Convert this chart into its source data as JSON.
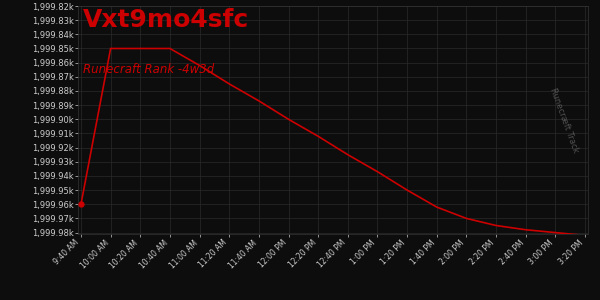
{
  "title": "Vxt9mo4sfc",
  "subtitle": "Runecraft Rank -4w3d",
  "background_color": "#0d0d0d",
  "grid_color": "#2a2a2a",
  "line_color": "#cc0000",
  "text_color": "#cccccc",
  "title_color": "#cc0000",
  "subtitle_color": "#cc0000",
  "x_times": [
    "9:40 AM",
    "10:00 AM",
    "10:20 AM",
    "10:40 AM",
    "11:00 AM",
    "11:20 AM",
    "11:40 AM",
    "12:00 PM",
    "12:20 PM",
    "12:40 PM",
    "1:00 PM",
    "1:20 PM",
    "1:40 PM",
    "2:00 PM",
    "2:20 PM",
    "2:40 PM",
    "3:00 PM",
    "3:20 PM"
  ],
  "x_numeric": [
    0,
    20,
    40,
    60,
    80,
    100,
    120,
    140,
    160,
    180,
    200,
    220,
    240,
    260,
    280,
    300,
    320,
    340
  ],
  "y_data_raw": [
    1999960,
    1999850,
    1999850,
    1999850,
    1999862,
    1999875,
    1999887,
    1999900,
    1999912,
    1999925,
    1999937,
    1999950,
    1999962,
    1999970,
    1999975,
    1999978,
    1999980,
    1999982
  ],
  "ylim_min": 1999820,
  "ylim_max": 1999981,
  "ytick_step": 10,
  "watermark": "Runecræft Track",
  "figsize": [
    6.0,
    3.0
  ],
  "dpi": 100
}
